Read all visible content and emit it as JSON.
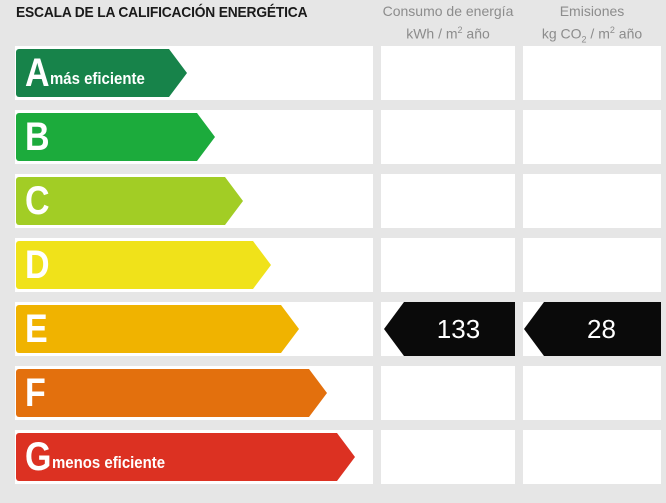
{
  "title": "ESCALA DE LA CALIFICACIÓN ENERGÉTICA",
  "columns": {
    "consumo": {
      "line1": "Consumo de energía",
      "line2_pre": "kWh / m",
      "line2_sup": "2",
      "line2_post": " año"
    },
    "emisiones": {
      "line1": "Emisiones",
      "line2_pre": "kg CO",
      "line2_sub": "2",
      "line2_post": " / m",
      "line2_sup": "2",
      "line2_post2": " año"
    }
  },
  "classes": [
    {
      "letter": "A",
      "desc": "más eficiente",
      "color": "#17834a",
      "level": 1
    },
    {
      "letter": "B",
      "desc": "",
      "color": "#1cab3c",
      "level": 2
    },
    {
      "letter": "C",
      "desc": "",
      "color": "#a2cd25",
      "level": 3
    },
    {
      "letter": "D",
      "desc": "",
      "color": "#f0e21a",
      "level": 4
    },
    {
      "letter": "E",
      "desc": "",
      "color": "#f0b300",
      "level": 5
    },
    {
      "letter": "F",
      "desc": "",
      "color": "#e3700d",
      "level": 6
    },
    {
      "letter": "G",
      "desc": "menos eficiente",
      "color": "#dc3122",
      "level": 7
    }
  ],
  "rating": {
    "class": "E",
    "consumo_value": "133",
    "emisiones_value": "28"
  }
}
